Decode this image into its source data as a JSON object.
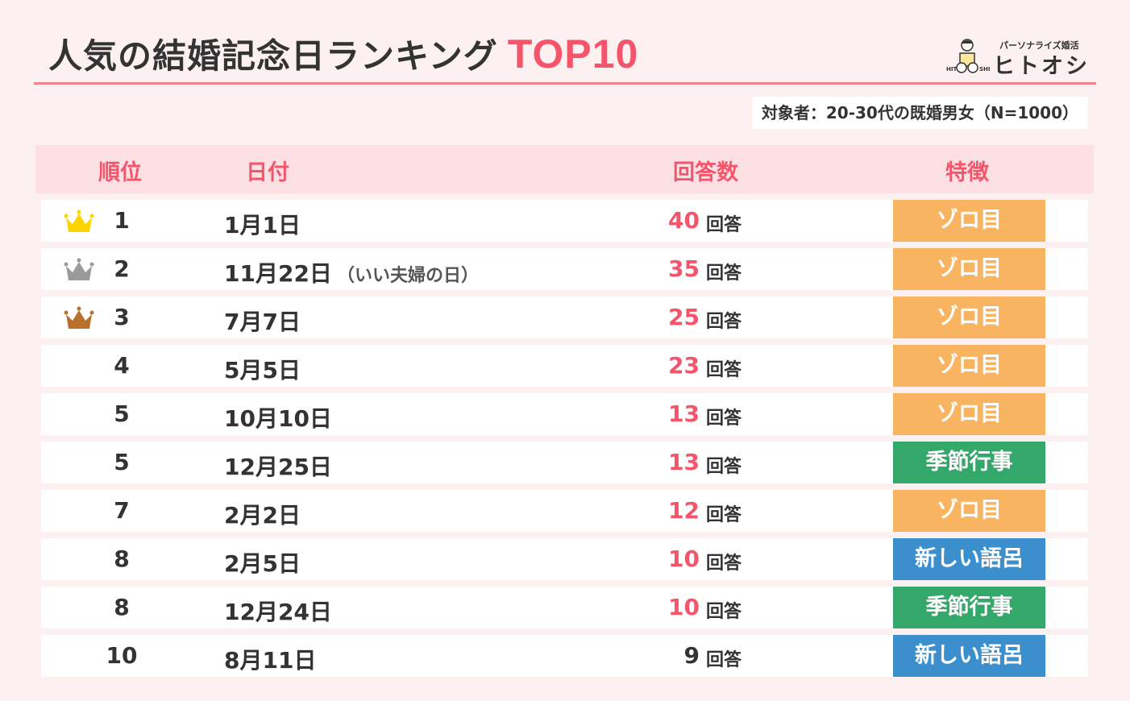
{
  "title": {
    "main": "人気の結婚記念日ランキング",
    "accent": "TOP10"
  },
  "logo": {
    "tagline": "パーソナライズ婚活",
    "name": "ヒトオシ",
    "mark_text": "HITOOSHI"
  },
  "subject": "対象者：20-30代の既婚男女（N=1000）",
  "colors": {
    "accent": "#f5556b",
    "header_bg": "#fde0e4",
    "background": "#fcf0f1",
    "ゾロ目": "#f8b461",
    "季節行事": "#33a86a",
    "新しい語呂": "#3b8fcc",
    "gold": "#ffd500",
    "silver": "#9a9a9a",
    "bronze": "#b8702c"
  },
  "chart_data": {
    "type": "table",
    "title": "人気の結婚記念日ランキング TOP10",
    "columns": [
      "順位",
      "日付",
      "回答数",
      "特徴"
    ],
    "rows": [
      {
        "rank": "1",
        "date": "1月1日",
        "note": "",
        "count": "40",
        "unit": "回答",
        "feature": "ゾロ目",
        "crown": "gold"
      },
      {
        "rank": "2",
        "date": "11月22日",
        "note": "（いい夫婦の日）",
        "count": "35",
        "unit": "回答",
        "feature": "ゾロ目",
        "crown": "silver"
      },
      {
        "rank": "3",
        "date": "7月7日",
        "note": "",
        "count": "25",
        "unit": "回答",
        "feature": "ゾロ目",
        "crown": "bronze"
      },
      {
        "rank": "4",
        "date": "5月5日",
        "note": "",
        "count": "23",
        "unit": "回答",
        "feature": "ゾロ目"
      },
      {
        "rank": "5",
        "date": "10月10日",
        "note": "",
        "count": "13",
        "unit": "回答",
        "feature": "ゾロ目"
      },
      {
        "rank": "5",
        "date": "12月25日",
        "note": "",
        "count": "13",
        "unit": "回答",
        "feature": "季節行事"
      },
      {
        "rank": "7",
        "date": "2月2日",
        "note": "",
        "count": "12",
        "unit": "回答",
        "feature": "ゾロ目"
      },
      {
        "rank": "8",
        "date": "2月5日",
        "note": "",
        "count": "10",
        "unit": "回答",
        "feature": "新しい語呂"
      },
      {
        "rank": "8",
        "date": "12月24日",
        "note": "",
        "count": "10",
        "unit": "回答",
        "feature": "季節行事"
      },
      {
        "rank": "10",
        "date": "8月11日",
        "note": "",
        "count": "9",
        "unit": "回答",
        "feature": "新しい語呂"
      }
    ]
  }
}
